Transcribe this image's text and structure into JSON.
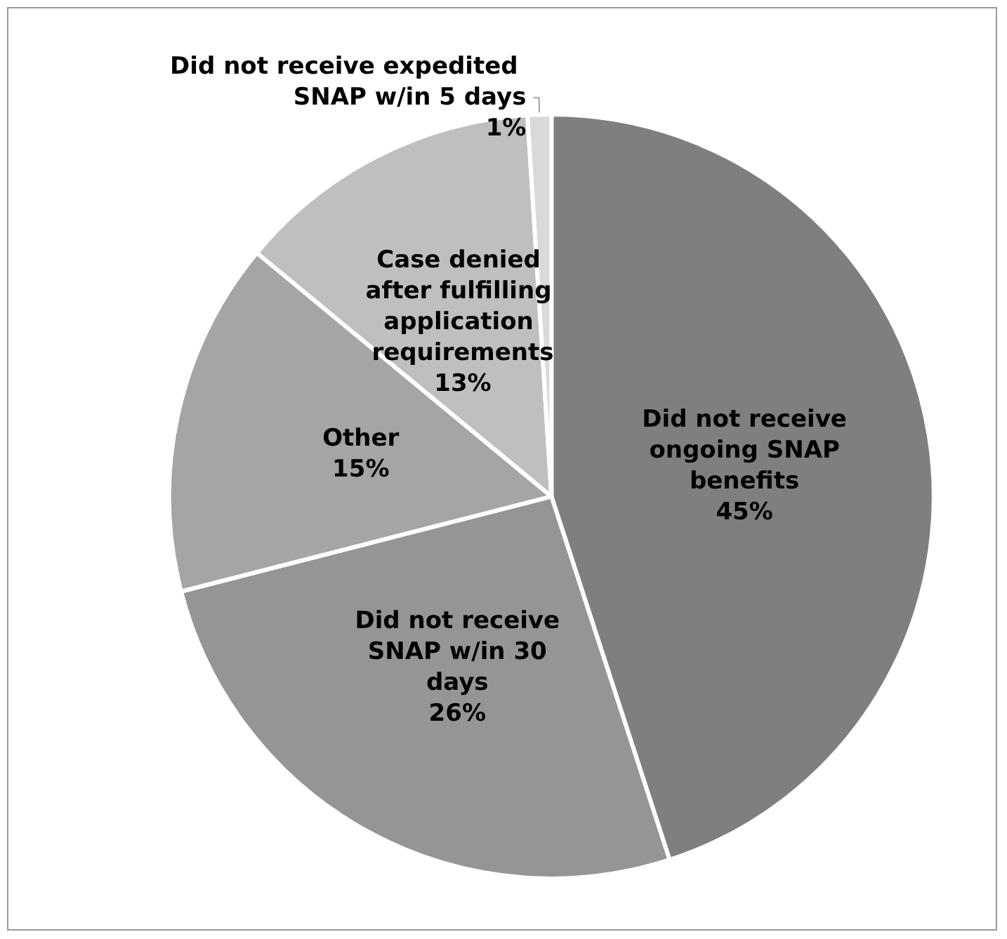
{
  "chart_data": {
    "type": "pie",
    "categories": [
      "Did not receive ongoing SNAP benefits",
      "Did not receive SNAP w/in 30 days",
      "Other",
      "Case denied after fulfilling application requirements",
      "Did not receive expedited SNAP w/in 5 days"
    ],
    "values": [
      45,
      26,
      15,
      13,
      1
    ],
    "value_labels": [
      "45%",
      "26%",
      "15%",
      "13%",
      "1%"
    ],
    "colors": [
      "#7f7f7f",
      "#959595",
      "#a5a5a5",
      "#bfbfbf",
      "#d9d9d9"
    ],
    "legend": false
  }
}
